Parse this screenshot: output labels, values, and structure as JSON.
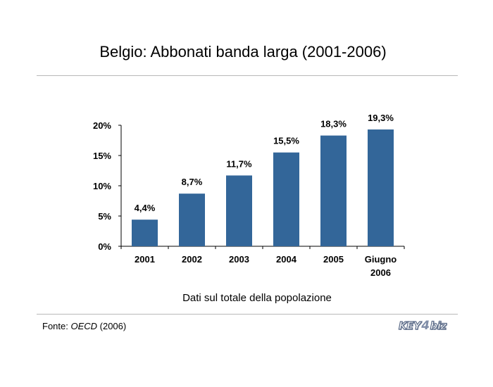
{
  "chart_data": {
    "type": "bar",
    "title": "Belgio: Abbonati banda larga (2001-2006)",
    "xlabel": "Dati sul totale della popolazione",
    "ylabel": "",
    "categories": [
      "2001",
      "2002",
      "2003",
      "2004",
      "2005",
      "Giugno 2006"
    ],
    "category_lines": [
      [
        "2001"
      ],
      [
        "2002"
      ],
      [
        "2003"
      ],
      [
        "2004"
      ],
      [
        "2005"
      ],
      [
        "Giugno",
        "2006"
      ]
    ],
    "values": [
      4.4,
      8.7,
      11.7,
      15.5,
      18.3,
      19.3
    ],
    "data_labels": [
      "4,4%",
      "8,7%",
      "11,7%",
      "15,5%",
      "18,3%",
      "19,3%"
    ],
    "ylim": [
      0,
      20
    ],
    "yticks": [
      0,
      5,
      10,
      15,
      20
    ],
    "ytick_labels": [
      "0%",
      "5%",
      "10%",
      "15%",
      "20%"
    ],
    "grid": false,
    "legend": "none",
    "bar_color": "#336699"
  },
  "source": {
    "prefix": "Fonte: ",
    "name": "OECD",
    "suffix": " (2006)"
  },
  "logo": {
    "key": "KEY",
    "four": "4",
    "biz": "biz"
  }
}
